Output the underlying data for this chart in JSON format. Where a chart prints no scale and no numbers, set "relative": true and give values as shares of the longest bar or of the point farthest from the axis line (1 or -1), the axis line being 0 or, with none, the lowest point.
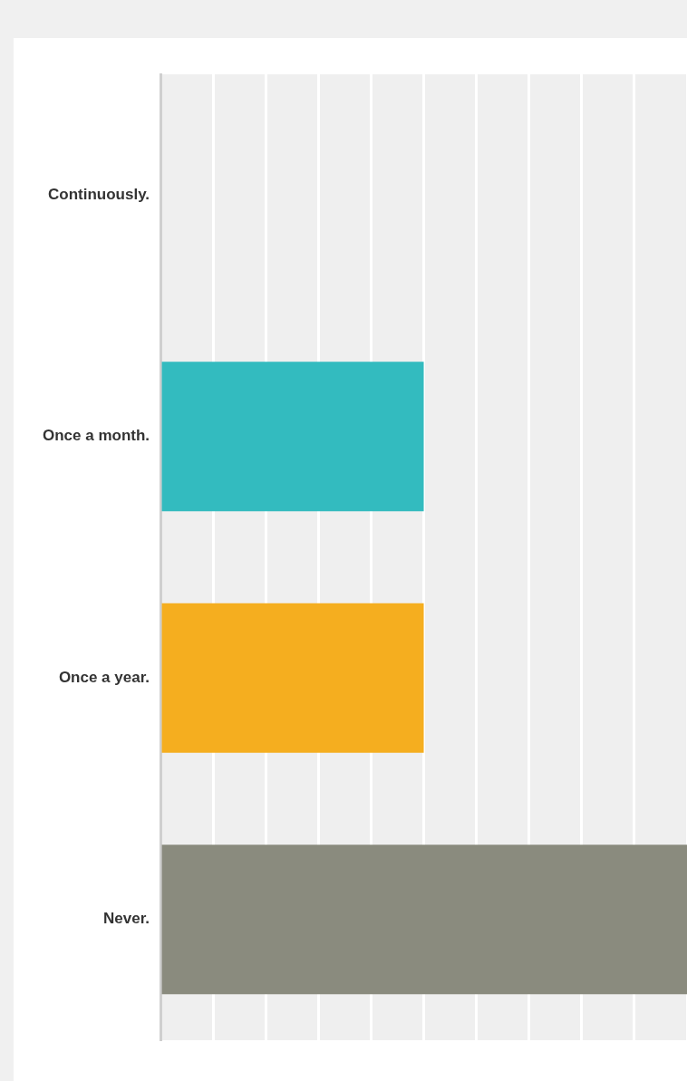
{
  "chart_data": {
    "type": "bar",
    "orientation": "horizontal",
    "relative": true,
    "grid": "x",
    "legend": false,
    "categories": [
      "Continuously.",
      "Once a month.",
      "Once a year.",
      "Never."
    ],
    "values": [
      0,
      0.5,
      0.5,
      1
    ],
    "colors": [
      "#33bbbf",
      "#33bbbf",
      "#f5ae1f",
      "#8a8b7e"
    ]
  }
}
